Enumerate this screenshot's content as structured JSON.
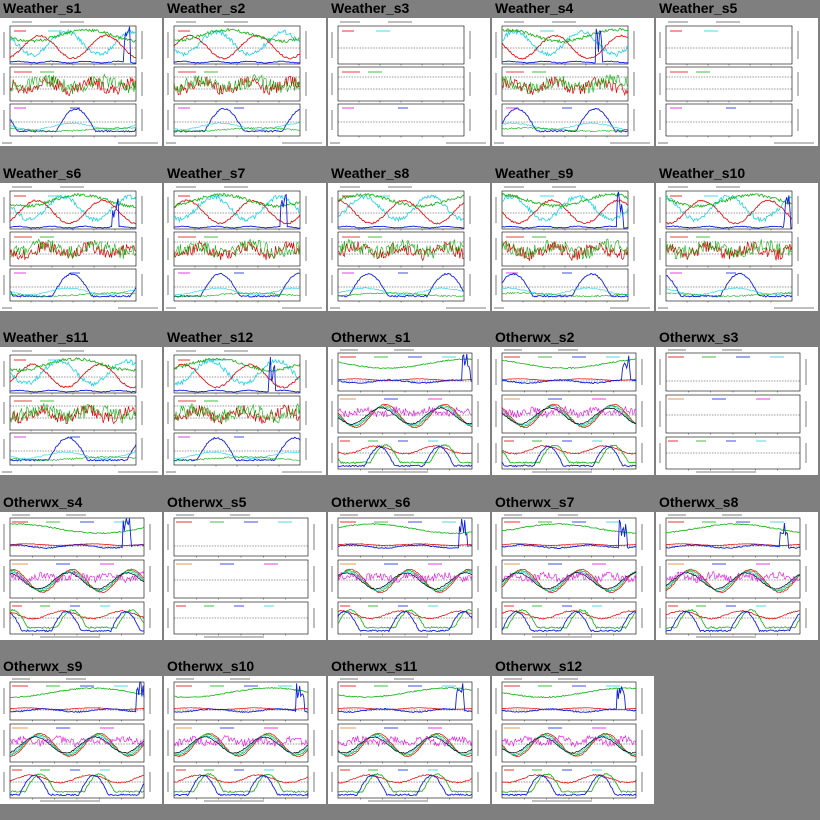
{
  "gallery": {
    "tiles": [
      {
        "title": "Weather_s1",
        "kind": "weather",
        "variant": 1
      },
      {
        "title": "Weather_s2",
        "kind": "weather",
        "variant": 2
      },
      {
        "title": "Weather_s3",
        "kind": "weather",
        "variant": 3,
        "empty": true
      },
      {
        "title": "Weather_s4",
        "kind": "weather",
        "variant": 4
      },
      {
        "title": "Weather_s5",
        "kind": "weather",
        "variant": 5,
        "empty": true
      },
      {
        "title": "Weather_s6",
        "kind": "weather",
        "variant": 6
      },
      {
        "title": "Weather_s7",
        "kind": "weather",
        "variant": 7
      },
      {
        "title": "Weather_s8",
        "kind": "weather",
        "variant": 8
      },
      {
        "title": "Weather_s9",
        "kind": "weather",
        "variant": 9
      },
      {
        "title": "Weather_s10",
        "kind": "weather",
        "variant": 10
      },
      {
        "title": "Weather_s11",
        "kind": "weather",
        "variant": 11
      },
      {
        "title": "Weather_s12",
        "kind": "weather",
        "variant": 12
      },
      {
        "title": "Otherwx_s1",
        "kind": "otherwx",
        "variant": 1
      },
      {
        "title": "Otherwx_s2",
        "kind": "otherwx",
        "variant": 2
      },
      {
        "title": "Otherwx_s3",
        "kind": "otherwx",
        "variant": 3,
        "empty": true
      },
      {
        "title": "Otherwx_s4",
        "kind": "otherwx",
        "variant": 4
      },
      {
        "title": "Otherwx_s5",
        "kind": "otherwx",
        "variant": 5,
        "empty": true
      },
      {
        "title": "Otherwx_s6",
        "kind": "otherwx",
        "variant": 6
      },
      {
        "title": "Otherwx_s7",
        "kind": "otherwx",
        "variant": 7
      },
      {
        "title": "Otherwx_s8",
        "kind": "otherwx",
        "variant": 8
      },
      {
        "title": "Otherwx_s9",
        "kind": "otherwx",
        "variant": 9
      },
      {
        "title": "Otherwx_s10",
        "kind": "otherwx",
        "variant": 10
      },
      {
        "title": "Otherwx_s11",
        "kind": "otherwx",
        "variant": 11
      },
      {
        "title": "Otherwx_s12",
        "kind": "otherwx",
        "variant": 12
      }
    ]
  },
  "colors": {
    "background": "#7f7f7f",
    "thumb": "#ffffff",
    "red": "#e00000",
    "green": "#10b010",
    "blue": "#1020e0",
    "cyan": "#20d0e0",
    "magenta": "#e010e0",
    "orange": "#e08020",
    "black": "#000000"
  }
}
